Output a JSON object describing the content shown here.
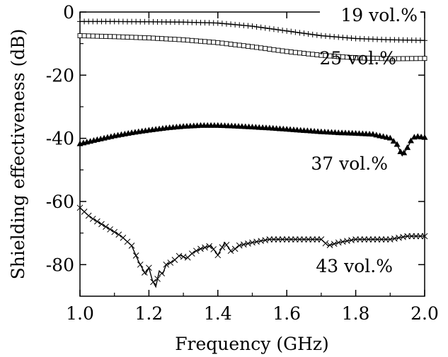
{
  "chart_data": {
    "type": "line",
    "title": "",
    "xlabel": "Frequency (GHz)",
    "ylabel": "Shielding effectiveness (dB)",
    "xlim": [
      1.0,
      2.0
    ],
    "ylim": [
      -90,
      0
    ],
    "xticks": [
      "1.0",
      "1.2",
      "1.4",
      "1.6",
      "1.8",
      "2.0"
    ],
    "yticks": [
      "0",
      "-20",
      "-40",
      "-60",
      "-80"
    ],
    "grid": false,
    "series": [
      {
        "name": "19 vol.%",
        "marker": "plus",
        "x": [
          1.0,
          1.1,
          1.2,
          1.3,
          1.4,
          1.5,
          1.6,
          1.7,
          1.8,
          1.9,
          2.0
        ],
        "y": [
          -3.0,
          -3.0,
          -3.1,
          -3.2,
          -3.5,
          -4.5,
          -6.0,
          -7.5,
          -8.4,
          -8.8,
          -9.0
        ]
      },
      {
        "name": "25 vol.%",
        "marker": "square",
        "x": [
          1.0,
          1.1,
          1.2,
          1.3,
          1.4,
          1.5,
          1.6,
          1.7,
          1.8,
          1.9,
          2.0
        ],
        "y": [
          -7.5,
          -7.8,
          -8.2,
          -8.8,
          -9.7,
          -11.0,
          -12.5,
          -13.7,
          -14.5,
          -14.8,
          -14.7
        ]
      },
      {
        "name": "37 vol.%",
        "marker": "triangle",
        "x": [
          1.0,
          1.05,
          1.1,
          1.15,
          1.2,
          1.25,
          1.3,
          1.35,
          1.4,
          1.45,
          1.5,
          1.55,
          1.6,
          1.65,
          1.7,
          1.75,
          1.8,
          1.85,
          1.9,
          1.92,
          1.935,
          1.95,
          1.965,
          1.98,
          2.0
        ],
        "y": [
          -41.8,
          -40.5,
          -39.3,
          -38.3,
          -37.5,
          -36.8,
          -36.3,
          -36.0,
          -36.0,
          -36.2,
          -36.5,
          -36.8,
          -37.2,
          -37.6,
          -38.0,
          -38.3,
          -38.5,
          -38.8,
          -40.0,
          -42.0,
          -45.5,
          -43.0,
          -39.8,
          -39.5,
          -39.8
        ]
      },
      {
        "name": "43 vol.%",
        "marker": "x",
        "x": [
          1.0,
          1.03,
          1.06,
          1.09,
          1.12,
          1.15,
          1.17,
          1.19,
          1.2,
          1.21,
          1.22,
          1.23,
          1.24,
          1.25,
          1.27,
          1.29,
          1.31,
          1.33,
          1.35,
          1.38,
          1.4,
          1.42,
          1.44,
          1.46,
          1.5,
          1.55,
          1.6,
          1.65,
          1.7,
          1.72,
          1.75,
          1.8,
          1.85,
          1.9,
          1.95,
          2.0
        ],
        "y": [
          -62,
          -65,
          -67,
          -69,
          -71,
          -74,
          -79,
          -83,
          -81,
          -85,
          -87,
          -82,
          -83,
          -80,
          -79,
          -77,
          -78,
          -76,
          -75,
          -74,
          -77,
          -73,
          -76,
          -74,
          -73,
          -72,
          -72,
          -72,
          -72,
          -74,
          -73,
          -72,
          -72,
          -72,
          -71,
          -71
        ]
      }
    ]
  }
}
